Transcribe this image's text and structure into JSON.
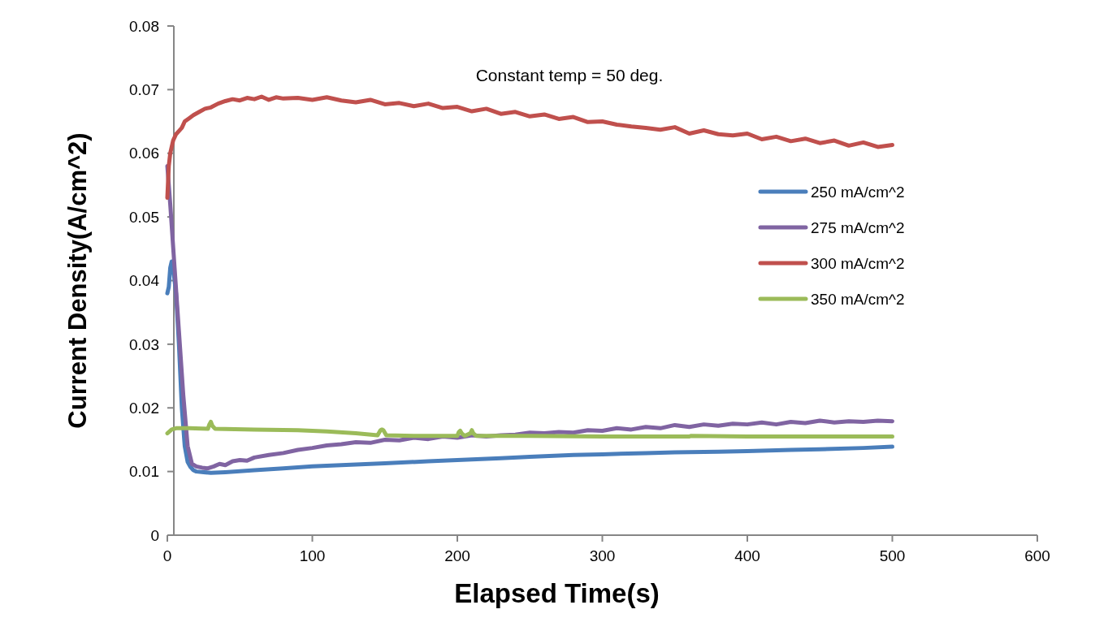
{
  "chart_data": {
    "type": "line",
    "xlabel": "Elapsed Time(s)",
    "ylabel": "Current Density(A/cm^2)",
    "annotations": [
      "Constant temp = 50 deg."
    ],
    "xlim": [
      0,
      600
    ],
    "xticks": [
      0,
      100,
      200,
      300,
      400,
      500,
      600
    ],
    "ylim": [
      0,
      0.08
    ],
    "yticks": [
      0,
      0.01,
      0.02,
      0.03,
      0.04,
      0.05,
      0.06,
      0.07,
      0.08
    ],
    "legend": "right",
    "grid": false,
    "marker": "none",
    "line_style": "solid",
    "series": [
      {
        "name": "250 mA/cm^2",
        "color": "#4a7ebb",
        "x": [
          0,
          1,
          2,
          3,
          4,
          6,
          8,
          10,
          12,
          14,
          16,
          18,
          20,
          25,
          30,
          40,
          60,
          80,
          100,
          120,
          150,
          180,
          200,
          230,
          250,
          280,
          300,
          330,
          350,
          380,
          400,
          430,
          450,
          480,
          500
        ],
        "values": [
          0.038,
          0.039,
          0.042,
          0.043,
          0.042,
          0.038,
          0.03,
          0.02,
          0.014,
          0.0115,
          0.0107,
          0.0102,
          0.01,
          0.0099,
          0.0098,
          0.0099,
          0.0102,
          0.0105,
          0.0108,
          0.011,
          0.0113,
          0.0116,
          0.0118,
          0.0121,
          0.0123,
          0.0126,
          0.0127,
          0.0129,
          0.013,
          0.0131,
          0.0132,
          0.0134,
          0.0135,
          0.0137,
          0.0139
        ]
      },
      {
        "name": "275  mA/cm^2",
        "color": "#8064a2",
        "x": [
          0,
          2,
          5,
          8,
          11,
          14,
          17,
          20,
          24,
          28,
          32,
          36,
          40,
          45,
          50,
          55,
          60,
          70,
          80,
          90,
          100,
          110,
          120,
          130,
          140,
          150,
          160,
          170,
          180,
          190,
          200,
          210,
          220,
          230,
          240,
          250,
          260,
          270,
          280,
          290,
          300,
          310,
          320,
          330,
          340,
          350,
          360,
          370,
          380,
          390,
          400,
          410,
          420,
          430,
          440,
          450,
          460,
          470,
          480,
          490,
          500
        ],
        "values": [
          0.058,
          0.052,
          0.042,
          0.032,
          0.022,
          0.014,
          0.0112,
          0.0108,
          0.0106,
          0.0105,
          0.0108,
          0.0112,
          0.011,
          0.0116,
          0.0118,
          0.0117,
          0.0122,
          0.0126,
          0.0129,
          0.0134,
          0.0137,
          0.0141,
          0.0143,
          0.0146,
          0.0145,
          0.015,
          0.0149,
          0.0153,
          0.0151,
          0.0155,
          0.0153,
          0.0157,
          0.0155,
          0.0157,
          0.0158,
          0.0161,
          0.016,
          0.0162,
          0.0161,
          0.0165,
          0.0164,
          0.0168,
          0.0166,
          0.017,
          0.0168,
          0.0173,
          0.017,
          0.0174,
          0.0172,
          0.0175,
          0.0174,
          0.0177,
          0.0174,
          0.0178,
          0.0176,
          0.018,
          0.0177,
          0.0179,
          0.0178,
          0.018,
          0.0179
        ]
      },
      {
        "name": "300  mA/cm^2",
        "color": "#c0504d",
        "x": [
          0,
          1,
          2,
          4,
          6,
          8,
          10,
          12,
          15,
          18,
          22,
          26,
          30,
          35,
          40,
          45,
          50,
          55,
          60,
          65,
          70,
          75,
          80,
          90,
          100,
          110,
          120,
          130,
          140,
          150,
          160,
          170,
          180,
          190,
          200,
          210,
          220,
          230,
          240,
          250,
          260,
          270,
          280,
          290,
          300,
          310,
          320,
          330,
          340,
          350,
          360,
          370,
          380,
          390,
          400,
          410,
          420,
          430,
          440,
          450,
          460,
          470,
          480,
          490,
          500
        ],
        "values": [
          0.053,
          0.058,
          0.06,
          0.062,
          0.063,
          0.0635,
          0.064,
          0.065,
          0.0655,
          0.066,
          0.0665,
          0.067,
          0.0672,
          0.0678,
          0.0682,
          0.0685,
          0.0683,
          0.0687,
          0.0685,
          0.0689,
          0.0684,
          0.0688,
          0.0686,
          0.0687,
          0.0684,
          0.0688,
          0.0683,
          0.068,
          0.0684,
          0.0677,
          0.0679,
          0.0674,
          0.0678,
          0.0671,
          0.0673,
          0.0666,
          0.067,
          0.0662,
          0.0665,
          0.0658,
          0.0661,
          0.0654,
          0.0657,
          0.0649,
          0.065,
          0.0645,
          0.0642,
          0.064,
          0.0637,
          0.0641,
          0.0631,
          0.0636,
          0.063,
          0.0628,
          0.0631,
          0.0622,
          0.0626,
          0.0619,
          0.0623,
          0.0616,
          0.062,
          0.0612,
          0.0617,
          0.061,
          0.0613
        ]
      },
      {
        "name": "350  mA/cm^2",
        "color": "#9bbb59",
        "x": [
          0,
          3,
          6,
          15,
          28,
          29,
          30,
          31,
          33,
          60,
          90,
          110,
          130,
          145,
          147,
          148,
          149,
          151,
          170,
          200,
          201,
          202,
          203,
          205,
          209,
          210,
          211,
          213,
          250,
          300,
          360,
          361,
          400,
          450,
          500
        ],
        "values": [
          0.016,
          0.0166,
          0.0168,
          0.0168,
          0.0167,
          0.0174,
          0.0178,
          0.0172,
          0.0167,
          0.0166,
          0.0165,
          0.0163,
          0.016,
          0.0157,
          0.0165,
          0.0166,
          0.0165,
          0.0157,
          0.0156,
          0.0156,
          0.0162,
          0.0164,
          0.016,
          0.0156,
          0.016,
          0.0165,
          0.016,
          0.0156,
          0.0156,
          0.0155,
          0.0155,
          0.0156,
          0.0155,
          0.0155,
          0.0155
        ]
      }
    ]
  }
}
